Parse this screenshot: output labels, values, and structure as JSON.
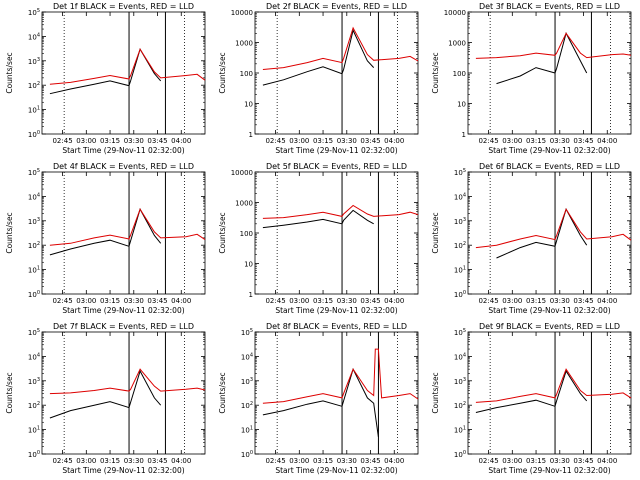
{
  "colors": {
    "events": "#000000",
    "lld": "#dd0000",
    "axes": "#000000"
  },
  "chart_data": [
    {
      "type": "line",
      "title": "Det 1f BLACK = Events, RED = LLD",
      "xlabel": "Start Time (29-Nov-11 02:32:00)",
      "ylabel": "Counts/sec",
      "y_scale": "log",
      "ylim": [
        1,
        100000
      ],
      "ytick_labels": [
        "10^0",
        "10^1",
        "10^2",
        "10^3",
        "10^4",
        "10^5"
      ],
      "xlim": [
        "02:32",
        "04:15"
      ],
      "xtick_labels": [
        "02:45",
        "03:00",
        "03:15",
        "03:30",
        "03:45",
        "04:00"
      ],
      "vlines": [
        {
          "time": "02:46",
          "style": "dotted"
        },
        {
          "time": "03:27",
          "style": "solid"
        },
        {
          "time": "03:50",
          "style": "solid"
        },
        {
          "time": "04:02",
          "style": "dotted"
        }
      ],
      "x": [
        "02:37",
        "02:50",
        "03:05",
        "03:15",
        "03:27",
        "03:28",
        "03:34",
        "03:43",
        "03:47",
        "04:03",
        "04:10",
        "04:15"
      ],
      "series": [
        {
          "name": "Events",
          "values": [
            45,
            70,
            110,
            150,
            95,
            150,
            3000,
            300,
            150,
            null,
            null,
            null
          ]
        },
        {
          "name": "LLD",
          "values": [
            110,
            130,
            190,
            250,
            180,
            250,
            3000,
            350,
            200,
            250,
            280,
            160
          ]
        }
      ]
    },
    {
      "type": "line",
      "title": "Det 2f BLACK = Events, RED = LLD",
      "xlabel": "Start Time (29-Nov-11 02:32:00)",
      "ylabel": "Counts/sec",
      "y_scale": "log",
      "ylim": [
        1,
        10000
      ],
      "ytick_labels": [
        "1",
        "10",
        "100",
        "1000",
        "10000"
      ],
      "xlim": [
        "02:32",
        "04:15"
      ],
      "xtick_labels": [
        "02:45",
        "03:00",
        "03:15",
        "03:30",
        "03:45",
        "04:00"
      ],
      "vlines": [
        {
          "time": "02:46",
          "style": "dotted"
        },
        {
          "time": "03:27",
          "style": "solid"
        },
        {
          "time": "03:50",
          "style": "solid"
        },
        {
          "time": "04:02",
          "style": "dotted"
        }
      ],
      "x": [
        "02:37",
        "02:50",
        "03:05",
        "03:15",
        "03:27",
        "03:28",
        "03:34",
        "03:43",
        "03:47",
        "04:03",
        "04:10",
        "04:15"
      ],
      "series": [
        {
          "name": "Events",
          "values": [
            40,
            60,
            110,
            160,
            95,
            130,
            2500,
            250,
            150,
            null,
            null,
            null
          ]
        },
        {
          "name": "LLD",
          "values": [
            130,
            150,
            220,
            300,
            220,
            300,
            3000,
            400,
            260,
            300,
            350,
            250
          ]
        }
      ]
    },
    {
      "type": "line",
      "title": "Det 3f BLACK = Events, RED = LLD",
      "xlabel": "Start Time (29-Nov-11 02:32:00)",
      "ylabel": "Counts/sec",
      "y_scale": "log",
      "ylim": [
        1,
        10000
      ],
      "ytick_labels": [
        "1",
        "10",
        "100",
        "1000",
        "10000"
      ],
      "xlim": [
        "02:32",
        "04:15"
      ],
      "xtick_labels": [
        "02:45",
        "03:00",
        "03:15",
        "03:30",
        "03:45",
        "04:00"
      ],
      "vlines": [
        {
          "time": "02:46",
          "style": "dotted"
        },
        {
          "time": "03:27",
          "style": "solid"
        },
        {
          "time": "03:50",
          "style": "solid"
        },
        {
          "time": "04:02",
          "style": "dotted"
        }
      ],
      "x": [
        "02:37",
        "02:50",
        "03:05",
        "03:15",
        "03:27",
        "03:28",
        "03:34",
        "03:43",
        "03:47",
        "04:03",
        "04:10",
        "04:15"
      ],
      "series": [
        {
          "name": "Events",
          "values": [
            null,
            45,
            80,
            150,
            100,
            140,
            2000,
            250,
            100,
            null,
            null,
            null
          ]
        },
        {
          "name": "LLD",
          "values": [
            300,
            320,
            370,
            450,
            380,
            450,
            2000,
            450,
            320,
            400,
            420,
            380
          ]
        }
      ]
    },
    {
      "type": "line",
      "title": "Det 4f BLACK = Events, RED = LLD",
      "xlabel": "Start Time (29-Nov-11 02:32:00)",
      "ylabel": "Counts/sec",
      "y_scale": "log",
      "ylim": [
        1,
        100000
      ],
      "ytick_labels": [
        "10^0",
        "10^1",
        "10^2",
        "10^3",
        "10^4",
        "10^5"
      ],
      "xlim": [
        "02:32",
        "04:15"
      ],
      "xtick_labels": [
        "02:45",
        "03:00",
        "03:15",
        "03:30",
        "03:45",
        "04:00"
      ],
      "vlines": [
        {
          "time": "02:46",
          "style": "dotted"
        },
        {
          "time": "03:27",
          "style": "solid"
        },
        {
          "time": "03:50",
          "style": "solid"
        },
        {
          "time": "04:02",
          "style": "dotted"
        }
      ],
      "x": [
        "02:37",
        "02:50",
        "03:05",
        "03:15",
        "03:27",
        "03:28",
        "03:34",
        "03:43",
        "03:47",
        "04:03",
        "04:10",
        "04:15"
      ],
      "series": [
        {
          "name": "Events",
          "values": [
            40,
            70,
            120,
            160,
            90,
            150,
            3000,
            250,
            120,
            null,
            null,
            null
          ]
        },
        {
          "name": "LLD",
          "values": [
            100,
            120,
            200,
            260,
            180,
            260,
            3000,
            350,
            200,
            220,
            280,
            170
          ]
        }
      ]
    },
    {
      "type": "line",
      "title": "Det 5f BLACK = Events, RED = LLD",
      "xlabel": "Start Time (29-Nov-11 02:32:00)",
      "ylabel": "Counts/sec",
      "y_scale": "log",
      "ylim": [
        1,
        10000
      ],
      "ytick_labels": [
        "1",
        "10",
        "100",
        "1000",
        "10000"
      ],
      "xlim": [
        "02:32",
        "04:15"
      ],
      "xtick_labels": [
        "02:45",
        "03:00",
        "03:15",
        "03:30",
        "03:45",
        "04:00"
      ],
      "vlines": [
        {
          "time": "02:46",
          "style": "dotted"
        },
        {
          "time": "03:27",
          "style": "solid"
        },
        {
          "time": "03:50",
          "style": "solid"
        },
        {
          "time": "04:02",
          "style": "dotted"
        }
      ],
      "x": [
        "02:37",
        "02:50",
        "03:05",
        "03:15",
        "03:27",
        "03:28",
        "03:34",
        "03:43",
        "03:47",
        "04:03",
        "04:10",
        "04:15"
      ],
      "series": [
        {
          "name": "Events",
          "values": [
            150,
            180,
            230,
            280,
            200,
            260,
            550,
            260,
            200,
            null,
            null,
            null
          ]
        },
        {
          "name": "LLD",
          "values": [
            300,
            320,
            400,
            480,
            350,
            420,
            800,
            420,
            350,
            400,
            480,
            400
          ]
        }
      ]
    },
    {
      "type": "line",
      "title": "Det 6f BLACK = Events, RED = LLD",
      "xlabel": "Start Time (29-Nov-11 02:32:00)",
      "ylabel": "Counts/sec",
      "y_scale": "log",
      "ylim": [
        1,
        100000
      ],
      "ytick_labels": [
        "10^0",
        "10^1",
        "10^2",
        "10^3",
        "10^4",
        "10^5"
      ],
      "xlim": [
        "02:32",
        "04:15"
      ],
      "xtick_labels": [
        "02:45",
        "03:00",
        "03:15",
        "03:30",
        "03:45",
        "04:00"
      ],
      "vlines": [
        {
          "time": "02:46",
          "style": "dotted"
        },
        {
          "time": "03:27",
          "style": "solid"
        },
        {
          "time": "03:50",
          "style": "solid"
        },
        {
          "time": "04:02",
          "style": "dotted"
        }
      ],
      "x": [
        "02:37",
        "02:50",
        "03:05",
        "03:15",
        "03:27",
        "03:28",
        "03:34",
        "03:43",
        "03:47",
        "04:03",
        "04:10",
        "04:15"
      ],
      "series": [
        {
          "name": "Events",
          "values": [
            null,
            30,
            80,
            130,
            90,
            150,
            3000,
            250,
            100,
            null,
            null,
            null
          ]
        },
        {
          "name": "LLD",
          "values": [
            80,
            100,
            180,
            250,
            170,
            250,
            3000,
            350,
            180,
            220,
            280,
            160
          ]
        }
      ]
    },
    {
      "type": "line",
      "title": "Det 7f BLACK = Events, RED = LLD",
      "xlabel": "Start Time (29-Nov-11 02:32:00)",
      "ylabel": "Counts/sec",
      "y_scale": "log",
      "ylim": [
        1,
        100000
      ],
      "ytick_labels": [
        "10^0",
        "10^1",
        "10^2",
        "10^3",
        "10^4",
        "10^5"
      ],
      "xlim": [
        "02:32",
        "04:15"
      ],
      "xtick_labels": [
        "02:45",
        "03:00",
        "03:15",
        "03:30",
        "03:45",
        "04:00"
      ],
      "vlines": [
        {
          "time": "02:46",
          "style": "dotted"
        },
        {
          "time": "03:27",
          "style": "solid"
        },
        {
          "time": "03:50",
          "style": "solid"
        },
        {
          "time": "04:02",
          "style": "dotted"
        }
      ],
      "x": [
        "02:37",
        "02:50",
        "03:05",
        "03:15",
        "03:27",
        "03:28",
        "03:34",
        "03:43",
        "03:47",
        "04:03",
        "04:10",
        "04:15"
      ],
      "series": [
        {
          "name": "Events",
          "values": [
            30,
            60,
            100,
            140,
            80,
            130,
            2500,
            200,
            100,
            null,
            null,
            null
          ]
        },
        {
          "name": "LLD",
          "values": [
            300,
            320,
            400,
            500,
            380,
            450,
            3000,
            600,
            380,
            450,
            500,
            420
          ]
        }
      ]
    },
    {
      "type": "line",
      "title": "Det 8f BLACK = Events, RED = LLD",
      "xlabel": "Start Time (29-Nov-11 02:32:00)",
      "ylabel": "Counts/sec",
      "y_scale": "log",
      "ylim": [
        1,
        100000
      ],
      "ytick_labels": [
        "10^0",
        "10^1",
        "10^2",
        "10^3",
        "10^4",
        "10^5"
      ],
      "xlim": [
        "02:32",
        "04:15"
      ],
      "xtick_labels": [
        "02:45",
        "03:00",
        "03:15",
        "03:30",
        "03:45",
        "04:00"
      ],
      "vlines": [
        {
          "time": "02:46",
          "style": "dotted"
        },
        {
          "time": "03:27",
          "style": "solid"
        },
        {
          "time": "03:50",
          "style": "solid"
        },
        {
          "time": "04:02",
          "style": "dotted"
        }
      ],
      "x": [
        "02:37",
        "02:50",
        "03:05",
        "03:15",
        "03:27",
        "03:28",
        "03:34",
        "03:43",
        "03:47",
        "03:48",
        "03:50",
        "03:52",
        "04:03",
        "04:10",
        "04:15"
      ],
      "series": [
        {
          "name": "Events",
          "values": [
            40,
            60,
            110,
            150,
            90,
            150,
            3000,
            200,
            120,
            40,
            5,
            null,
            null,
            null,
            null
          ]
        },
        {
          "name": "LLD",
          "values": [
            120,
            140,
            220,
            300,
            200,
            300,
            3000,
            400,
            250,
            20000,
            20000,
            200,
            250,
            300,
            180
          ]
        }
      ]
    },
    {
      "type": "line",
      "title": "Det 9f BLACK = Events, RED = LLD",
      "xlabel": "Start Time (29-Nov-11 02:32:00)",
      "ylabel": "Counts/sec",
      "y_scale": "log",
      "ylim": [
        1,
        100000
      ],
      "ytick_labels": [
        "10^0",
        "10^1",
        "10^2",
        "10^3",
        "10^4",
        "10^5"
      ],
      "xlim": [
        "02:32",
        "04:15"
      ],
      "xtick_labels": [
        "02:45",
        "03:00",
        "03:15",
        "03:30",
        "03:45",
        "04:00"
      ],
      "vlines": [
        {
          "time": "02:46",
          "style": "dotted"
        },
        {
          "time": "03:27",
          "style": "solid"
        },
        {
          "time": "03:50",
          "style": "solid"
        },
        {
          "time": "04:02",
          "style": "dotted"
        }
      ],
      "x": [
        "02:37",
        "02:50",
        "03:05",
        "03:15",
        "03:27",
        "03:28",
        "03:34",
        "03:43",
        "03:47",
        "04:03",
        "04:10",
        "04:15"
      ],
      "series": [
        {
          "name": "Events",
          "values": [
            50,
            80,
            120,
            160,
            90,
            150,
            2500,
            300,
            150,
            null,
            null,
            null
          ]
        },
        {
          "name": "LLD",
          "values": [
            130,
            150,
            230,
            300,
            200,
            280,
            3000,
            400,
            250,
            280,
            320,
            200
          ]
        }
      ]
    }
  ]
}
